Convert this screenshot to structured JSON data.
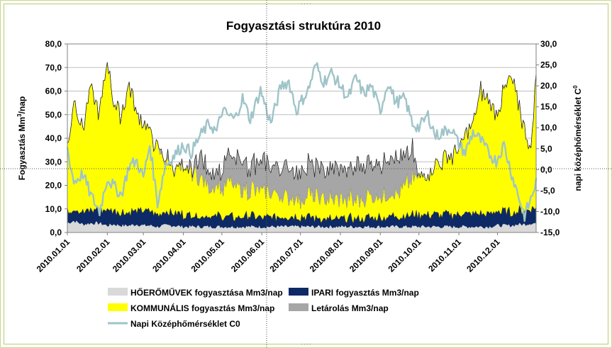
{
  "chart_data": {
    "type": "area",
    "title": "Fogyasztási struktúra 2010",
    "ylabel_left": "Fogyasztás Mm",
    "ylabel_left_sup": "3",
    "ylabel_left_tail": "/nap",
    "ylabel_right": "napi középhőmérséklet C",
    "ylabel_right_sup": "0",
    "y_left_range": [
      0,
      80
    ],
    "y_right_range": [
      -15,
      30
    ],
    "y_left_ticks": [
      "0,0",
      "10,0",
      "20,0",
      "30,0",
      "40,0",
      "50,0",
      "60,0",
      "70,0",
      "80,0"
    ],
    "y_right_ticks": [
      "-15,0",
      "-10,0",
      "-5,0",
      "0,0",
      "5,0",
      "10,0",
      "15,0",
      "20,0",
      "25,0",
      "30,0"
    ],
    "x_ticks": [
      "2010.01.01",
      "2010.02.01",
      "2010.03.01",
      "2010.04.01",
      "2010.05.01",
      "2010.06.01",
      "2010.07.01",
      "2010.08.01",
      "2010.09.01",
      "2010.10.01",
      "2010.11.01",
      "2010.12.01"
    ],
    "grid": "horizontal",
    "legend_position": "bottom",
    "legend": [
      {
        "name": "HŐERŐMŰVEK fogyasztása Mm3/nap",
        "color": "#d9d9d9"
      },
      {
        "name": "IPARI fogyasztás Mm3/nap",
        "color": "#0d2a66"
      },
      {
        "name": "KOMMUNÁLIS fogyasztás Mm3/nap",
        "color": "#ffff00"
      },
      {
        "name": "Letárolás Mm3/nap",
        "color": "#a6a6a6"
      },
      {
        "name": "Napi Középhőmérséklet C0",
        "color": "#9fc4c8"
      }
    ],
    "series_knots": {
      "day": [
        0,
        5,
        12,
        18,
        25,
        31,
        36,
        42,
        48,
        54,
        59,
        64,
        70,
        76,
        82,
        90,
        96,
        103,
        110,
        116,
        120,
        125,
        130,
        136,
        142,
        150,
        158,
        166,
        172,
        178,
        181,
        187,
        193,
        199,
        205,
        212,
        218,
        224,
        230,
        236,
        243,
        249,
        255,
        262,
        268,
        273,
        280,
        286,
        292,
        298,
        304,
        309,
        315,
        321,
        327,
        333,
        339,
        345,
        350,
        355,
        360,
        364
      ],
      "heat": [
        4,
        5,
        3.5,
        4,
        4,
        3,
        3.5,
        3,
        3,
        3.5,
        3,
        3,
        2.5,
        3,
        3,
        2.5,
        2.5,
        2.5,
        2.5,
        2.5,
        2.5,
        2.5,
        2.5,
        2.5,
        2.5,
        2.5,
        2.5,
        2.5,
        2.5,
        2.5,
        2.5,
        2.5,
        2.5,
        2.5,
        2.5,
        2.5,
        2.5,
        2.5,
        2.5,
        2.5,
        2.5,
        2.5,
        2.5,
        2.5,
        2.5,
        2.5,
        2.5,
        2.5,
        2.5,
        2.5,
        2.5,
        2.5,
        2.5,
        2.5,
        2.5,
        3,
        3,
        3,
        3.5,
        3.5,
        4,
        4
      ],
      "ipari": [
        5,
        5.5,
        5,
        5.5,
        6,
        6.5,
        6,
        5.5,
        5.5,
        6,
        6,
        6,
        5,
        5.5,
        5.5,
        5,
        5,
        4.5,
        4.5,
        4.5,
        4.5,
        4.5,
        4,
        4.5,
        4.5,
        4,
        4,
        4,
        4,
        4,
        4,
        4,
        3.5,
        3.5,
        3,
        3,
        3.5,
        3.5,
        3.5,
        4,
        4,
        4,
        4.5,
        4.5,
        5,
        5,
        5,
        5,
        5,
        5,
        5.5,
        5.5,
        5.5,
        5.5,
        5.5,
        6,
        5.5,
        5.5,
        5.5,
        6,
        6.5,
        6.5
      ],
      "komm": [
        26,
        48,
        35,
        52,
        40,
        64,
        46,
        42,
        55,
        40,
        38,
        33,
        28,
        22,
        20,
        18,
        19,
        17,
        13,
        13,
        12,
        14,
        13,
        12,
        11,
        11,
        10,
        10,
        9,
        9,
        8,
        9,
        9,
        9,
        8,
        8,
        8,
        8,
        9,
        9,
        10,
        10,
        10,
        13,
        15,
        16,
        18,
        21,
        23,
        25,
        28,
        33,
        38,
        52,
        48,
        42,
        50,
        58,
        46,
        35,
        25,
        58
      ],
      "tarol": [
        0,
        0,
        0,
        0,
        0,
        0,
        0,
        0,
        0,
        0,
        0,
        0,
        0,
        2,
        0,
        1,
        1,
        10,
        6,
        8,
        7,
        10,
        12,
        12,
        11,
        12,
        12,
        12,
        12,
        12,
        13,
        12,
        13,
        13,
        13,
        14,
        12,
        14,
        14,
        15,
        14,
        15,
        16,
        13,
        10,
        0,
        0,
        0,
        0,
        0,
        0,
        0,
        0,
        0,
        0,
        0,
        0,
        0,
        0,
        0,
        0,
        0
      ],
      "temp": [
        5,
        -3,
        -1,
        -6,
        -10,
        -2,
        -4,
        -6,
        1,
        2,
        -2,
        6,
        -8,
        1,
        3,
        6,
        4,
        8,
        11,
        9,
        14,
        13,
        12,
        17,
        12,
        19,
        11,
        20,
        21,
        14,
        16,
        19,
        25,
        21,
        23,
        20,
        17,
        22,
        18,
        20,
        14,
        21,
        16,
        17,
        11,
        10,
        13,
        8,
        9,
        10,
        6,
        4,
        9,
        7,
        4,
        2,
        6,
        -1,
        -6,
        -11,
        -7,
        -3
      ]
    }
  }
}
